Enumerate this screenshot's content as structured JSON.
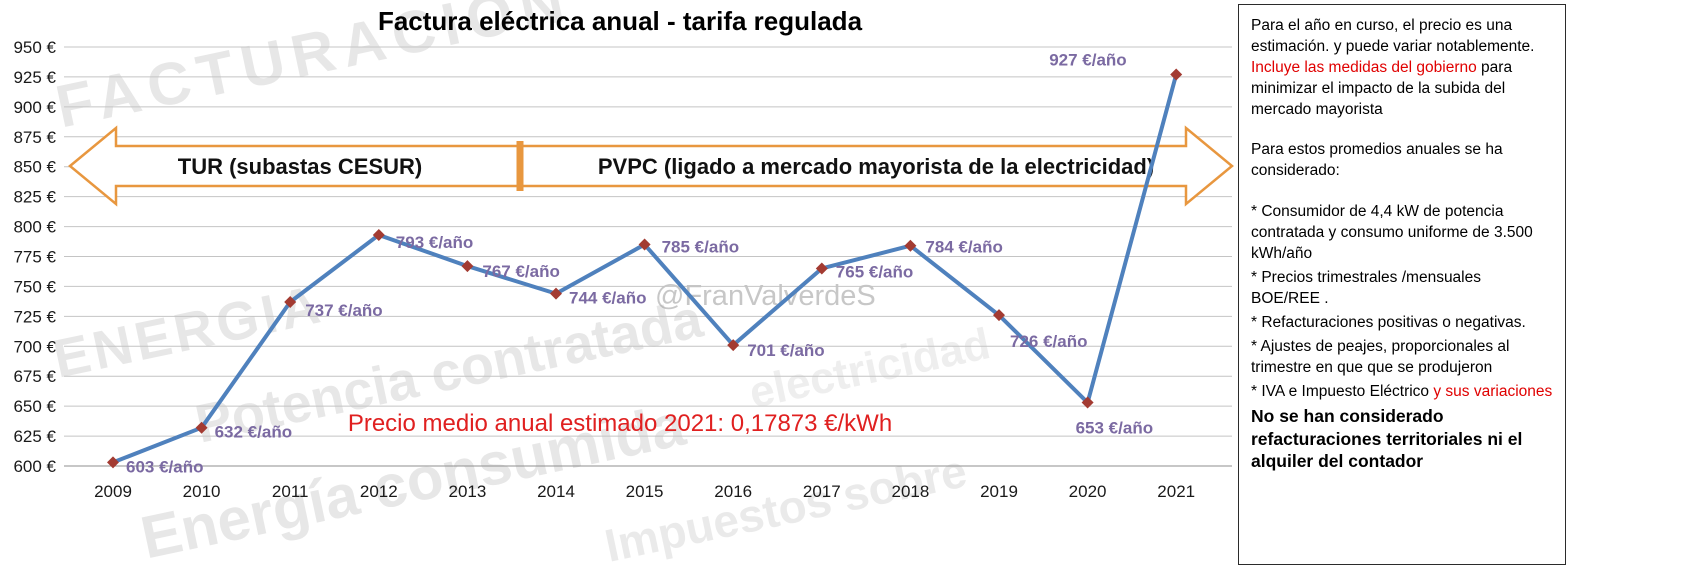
{
  "chart_data": {
    "type": "line",
    "title": "Factura eléctrica anual - tarifa regulada",
    "categories": [
      "2009",
      "2010",
      "2011",
      "2012",
      "2013",
      "2014",
      "2015",
      "2016",
      "2017",
      "2018",
      "2019",
      "2020",
      "2021"
    ],
    "values": [
      603,
      632,
      737,
      793,
      767,
      744,
      785,
      701,
      765,
      784,
      726,
      653,
      927
    ],
    "point_label_unit": "€/año",
    "y_tick_unit": "€",
    "ylim": [
      600,
      950
    ],
    "y_tick_step": 25,
    "grid": "horizontal",
    "legend": "none",
    "line_color": "#4f81bd",
    "marker_color": "#a33b32",
    "point_label_color": "#7b6aa2",
    "banner": {
      "left_label": "TUR (subastas CESUR)",
      "right_label": "PVPC (ligado a mercado mayorista de la electricidad)",
      "color": "#e8973f"
    },
    "annotation": {
      "text": "Precio medio anual estimado 2021: 0,17873 €/kWh",
      "color": "#e02020"
    }
  },
  "watermarks": [
    "FACTURACION",
    "ENERGIA",
    "Potencia contratada",
    "Energía consumida",
    "Impuestos sobre",
    "electricidad",
    "@FranValverdeS"
  ],
  "panel": {
    "p1_a": "Para el año en curso, el precio es una estimación. y puede variar notablemente. ",
    "p1_red": "Incluye las medidas del gobierno",
    "p1_b": " para minimizar el impacto de la subida del mercado mayorista",
    "p2": "Para estos promedios anuales se ha considerado:",
    "items": [
      "* Consumidor de 4,4 kW de potencia contratada y consumo uniforme de 3.500 kWh/año",
      "* Precios trimestrales /mensuales BOE/REE .",
      "* Refacturaciones positivas o negativas.",
      "* Ajustes de peajes, proporcionales al trimestre en que que se produjeron"
    ],
    "item_iva": "* IVA e Impuesto Eléctrico ",
    "item_iva_red": "y sus variaciones",
    "final": "No se han considerado refacturaciones territoriales ni el alquiler del contador"
  },
  "colors": {
    "highlight_red": "#e00000",
    "gridline": "#c4c4c4",
    "axis": "#8f8f8f"
  }
}
